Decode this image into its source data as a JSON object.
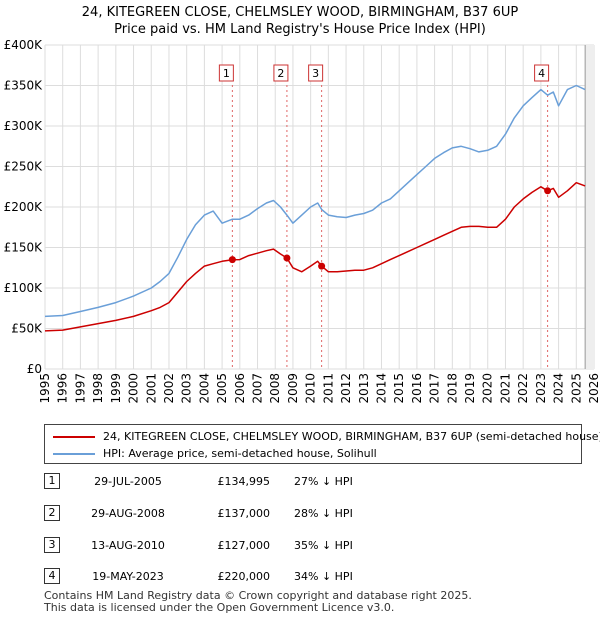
{
  "title_line1": "24, KITEGREEN CLOSE, CHELMSLEY WOOD, BIRMINGHAM, B37 6UP",
  "title_line2": "Price paid vs. HM Land Registry's House Price Index (HPI)",
  "chart_data": {
    "type": "line",
    "title": "24, KITEGREEN CLOSE, CHELMSLEY WOOD, BIRMINGHAM, B37 6UP — Price paid vs. HM Land Registry's House Price Index (HPI)",
    "xlabel": "",
    "ylabel": "",
    "xlim": [
      1995,
      2026
    ],
    "ylim": [
      0,
      400000
    ],
    "y_ticks": [
      0,
      50000,
      100000,
      150000,
      200000,
      250000,
      300000,
      350000,
      400000
    ],
    "y_tick_labels": [
      "£0",
      "£50K",
      "£100K",
      "£150K",
      "£200K",
      "£250K",
      "£300K",
      "£350K",
      "£400K"
    ],
    "x_ticks": [
      1995,
      1996,
      1997,
      1998,
      1999,
      2000,
      2001,
      2002,
      2003,
      2004,
      2005,
      2006,
      2007,
      2008,
      2009,
      2010,
      2011,
      2012,
      2013,
      2014,
      2015,
      2016,
      2017,
      2018,
      2019,
      2020,
      2021,
      2022,
      2023,
      2024,
      2025,
      2026
    ],
    "x_tick_labels": [
      "1995",
      "1996",
      "1997",
      "1998",
      "1999",
      "2000",
      "2001",
      "2002",
      "2003",
      "2004",
      "2005",
      "2006",
      "2007",
      "2008",
      "2009",
      "2010",
      "2011",
      "2012",
      "2013",
      "2014",
      "2015",
      "2016",
      "2017",
      "2018",
      "2019",
      "2020",
      "2021",
      "2022",
      "2023",
      "2024",
      "2025",
      "2026"
    ],
    "grid": true,
    "legend_position": "below-chart",
    "series": [
      {
        "name": "24, KITEGREEN CLOSE, CHELMSLEY WOOD, BIRMINGHAM, B37 6UP (semi-detached house)",
        "color": "#cc0000",
        "x": [
          1995.0,
          1996.0,
          1997.0,
          1998.0,
          1999.0,
          2000.0,
          2001.0,
          2001.5,
          2002.0,
          2002.5,
          2003.0,
          2003.5,
          2004.0,
          2004.5,
          2005.0,
          2005.58,
          2006.0,
          2006.5,
          2007.0,
          2007.5,
          2007.9,
          2008.3,
          2008.66,
          2009.0,
          2009.5,
          2010.0,
          2010.4,
          2010.62,
          2011.0,
          2011.5,
          2012.0,
          2012.5,
          2013.0,
          2013.5,
          2014.0,
          2014.5,
          2015.0,
          2015.5,
          2016.0,
          2016.5,
          2017.0,
          2017.5,
          2018.0,
          2018.5,
          2019.0,
          2019.5,
          2020.0,
          2020.5,
          2021.0,
          2021.5,
          2022.0,
          2022.5,
          2023.0,
          2023.38,
          2023.7,
          2024.0,
          2024.5,
          2025.0,
          2025.5
        ],
        "values": [
          47000,
          48000,
          52000,
          56000,
          60000,
          65000,
          72000,
          76000,
          82000,
          95000,
          108000,
          118000,
          127000,
          130000,
          133000,
          134995,
          135000,
          140000,
          143000,
          146000,
          148000,
          142000,
          137000,
          125000,
          120000,
          127000,
          133000,
          127000,
          120000,
          120000,
          121000,
          122000,
          122000,
          125000,
          130000,
          135000,
          140000,
          145000,
          150000,
          155000,
          160000,
          165000,
          170000,
          175000,
          176000,
          176000,
          175000,
          175000,
          185000,
          200000,
          210000,
          218000,
          225000,
          220000,
          223000,
          212000,
          220000,
          230000,
          226000
        ]
      },
      {
        "name": "HPI: Average price, semi-detached house, Solihull",
        "color": "#6a9fd8",
        "x": [
          1995.0,
          1996.0,
          1997.0,
          1998.0,
          1999.0,
          2000.0,
          2001.0,
          2001.5,
          2002.0,
          2002.5,
          2003.0,
          2003.5,
          2004.0,
          2004.5,
          2005.0,
          2005.58,
          2006.0,
          2006.5,
          2007.0,
          2007.5,
          2007.9,
          2008.3,
          2008.66,
          2009.0,
          2009.5,
          2010.0,
          2010.4,
          2010.62,
          2011.0,
          2011.5,
          2012.0,
          2012.5,
          2013.0,
          2013.5,
          2014.0,
          2014.5,
          2015.0,
          2015.5,
          2016.0,
          2016.5,
          2017.0,
          2017.5,
          2018.0,
          2018.5,
          2019.0,
          2019.5,
          2020.0,
          2020.5,
          2021.0,
          2021.5,
          2022.0,
          2022.5,
          2023.0,
          2023.38,
          2023.7,
          2024.0,
          2024.5,
          2025.0,
          2025.5
        ],
        "values": [
          65000,
          66000,
          71000,
          76000,
          82000,
          90000,
          100000,
          108000,
          118000,
          138000,
          160000,
          178000,
          190000,
          195000,
          180000,
          185000,
          185000,
          190000,
          198000,
          205000,
          208000,
          200000,
          190000,
          180000,
          190000,
          200000,
          205000,
          197000,
          190000,
          188000,
          187000,
          190000,
          192000,
          196000,
          205000,
          210000,
          220000,
          230000,
          240000,
          250000,
          260000,
          267000,
          273000,
          275000,
          272000,
          268000,
          270000,
          275000,
          290000,
          310000,
          325000,
          335000,
          345000,
          338000,
          342000,
          325000,
          345000,
          350000,
          345000
        ]
      }
    ],
    "sale_markers": [
      {
        "label": "1",
        "x": 2005.58,
        "y": 134995
      },
      {
        "label": "2",
        "x": 2008.66,
        "y": 137000
      },
      {
        "label": "3",
        "x": 2010.62,
        "y": 127000
      },
      {
        "label": "4",
        "x": 2023.38,
        "y": 220000
      }
    ],
    "projection_start": 2025.5
  },
  "legend": {
    "property_label": "24, KITEGREEN CLOSE, CHELMSLEY WOOD, BIRMINGHAM, B37 6UP (semi-detached house)",
    "hpi_label": "HPI: Average price, semi-detached house, Solihull",
    "property_color": "#cc0000",
    "hpi_color": "#6a9fd8"
  },
  "sales": [
    {
      "num": "1",
      "date": "29-JUL-2005",
      "price": "£134,995",
      "hpi": "27% ↓ HPI"
    },
    {
      "num": "2",
      "date": "29-AUG-2008",
      "price": "£137,000",
      "hpi": "28% ↓ HPI"
    },
    {
      "num": "3",
      "date": "13-AUG-2010",
      "price": "£127,000",
      "hpi": "35% ↓ HPI"
    },
    {
      "num": "4",
      "date": "19-MAY-2023",
      "price": "£220,000",
      "hpi": "34% ↓ HPI"
    }
  ],
  "footer": {
    "line1": "Contains HM Land Registry data © Crown copyright and database right 2025.",
    "line2": "This data is licensed under the Open Government Licence v3.0."
  }
}
